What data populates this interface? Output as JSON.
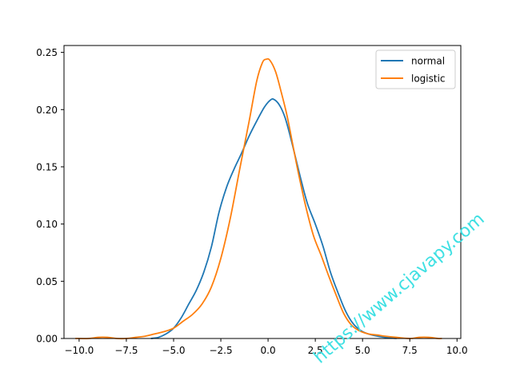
{
  "chart_data": {
    "type": "line",
    "title": "",
    "xlabel": "",
    "ylabel": "",
    "xlim": [
      -10.8,
      10.2
    ],
    "ylim": [
      0,
      0.256
    ],
    "x_ticks": [
      {
        "value": -10.0,
        "label": "−10.0"
      },
      {
        "value": -7.5,
        "label": "−7.5"
      },
      {
        "value": -5.0,
        "label": "−5.0"
      },
      {
        "value": -2.5,
        "label": "−2.5"
      },
      {
        "value": 0.0,
        "label": "0.0"
      },
      {
        "value": 2.5,
        "label": "2.5"
      },
      {
        "value": 5.0,
        "label": "5.0"
      },
      {
        "value": 7.5,
        "label": "7.5"
      },
      {
        "value": 10.0,
        "label": "10.0"
      }
    ],
    "y_ticks": [
      {
        "value": 0.0,
        "label": "0.00"
      },
      {
        "value": 0.05,
        "label": "0.05"
      },
      {
        "value": 0.1,
        "label": "0.10"
      },
      {
        "value": 0.15,
        "label": "0.15"
      },
      {
        "value": 0.2,
        "label": "0.20"
      },
      {
        "value": 0.25,
        "label": "0.25"
      }
    ],
    "grid": false,
    "legend_position": "top-right",
    "series": [
      {
        "name": "normal",
        "color": "#1f77b4",
        "points": [
          [
            -6.2,
            0.0
          ],
          [
            -5.8,
            0.001
          ],
          [
            -5.4,
            0.004
          ],
          [
            -5.0,
            0.009
          ],
          [
            -4.6,
            0.018
          ],
          [
            -4.2,
            0.03
          ],
          [
            -3.8,
            0.042
          ],
          [
            -3.4,
            0.058
          ],
          [
            -3.0,
            0.08
          ],
          [
            -2.6,
            0.11
          ],
          [
            -2.2,
            0.132
          ],
          [
            -1.8,
            0.148
          ],
          [
            -1.4,
            0.162
          ],
          [
            -1.0,
            0.177
          ],
          [
            -0.6,
            0.19
          ],
          [
            -0.2,
            0.202
          ],
          [
            0.1,
            0.208
          ],
          [
            0.3,
            0.209
          ],
          [
            0.6,
            0.204
          ],
          [
            0.9,
            0.193
          ],
          [
            1.2,
            0.175
          ],
          [
            1.5,
            0.155
          ],
          [
            1.8,
            0.135
          ],
          [
            2.1,
            0.117
          ],
          [
            2.5,
            0.1
          ],
          [
            2.9,
            0.081
          ],
          [
            3.3,
            0.058
          ],
          [
            3.7,
            0.04
          ],
          [
            4.1,
            0.024
          ],
          [
            4.5,
            0.013
          ],
          [
            4.9,
            0.007
          ],
          [
            5.3,
            0.004
          ],
          [
            5.8,
            0.002
          ],
          [
            6.2,
            0.001
          ],
          [
            6.8,
            0.0
          ]
        ]
      },
      {
        "name": "logistic",
        "color": "#ff7f0e",
        "points": [
          [
            -10.2,
            0.0
          ],
          [
            -9.5,
            0.0
          ],
          [
            -9.0,
            0.001
          ],
          [
            -8.5,
            0.001
          ],
          [
            -8.0,
            0.0
          ],
          [
            -7.5,
            0.0
          ],
          [
            -7.0,
            0.001
          ],
          [
            -6.5,
            0.002
          ],
          [
            -6.0,
            0.004
          ],
          [
            -5.5,
            0.006
          ],
          [
            -5.0,
            0.009
          ],
          [
            -4.5,
            0.015
          ],
          [
            -4.0,
            0.021
          ],
          [
            -3.5,
            0.03
          ],
          [
            -3.0,
            0.045
          ],
          [
            -2.5,
            0.07
          ],
          [
            -2.0,
            0.105
          ],
          [
            -1.5,
            0.148
          ],
          [
            -1.0,
            0.19
          ],
          [
            -0.6,
            0.225
          ],
          [
            -0.3,
            0.241
          ],
          [
            -0.1,
            0.244
          ],
          [
            0.1,
            0.243
          ],
          [
            0.4,
            0.233
          ],
          [
            0.7,
            0.215
          ],
          [
            1.0,
            0.195
          ],
          [
            1.3,
            0.17
          ],
          [
            1.6,
            0.145
          ],
          [
            2.0,
            0.115
          ],
          [
            2.4,
            0.09
          ],
          [
            2.8,
            0.073
          ],
          [
            3.2,
            0.055
          ],
          [
            3.6,
            0.038
          ],
          [
            4.0,
            0.022
          ],
          [
            4.4,
            0.012
          ],
          [
            4.8,
            0.007
          ],
          [
            5.3,
            0.004
          ],
          [
            5.8,
            0.003
          ],
          [
            6.2,
            0.002
          ],
          [
            6.8,
            0.001
          ],
          [
            7.5,
            0.0
          ],
          [
            8.0,
            0.001
          ],
          [
            8.5,
            0.001
          ],
          [
            9.0,
            0.0
          ],
          [
            9.2,
            0.0
          ]
        ]
      }
    ]
  },
  "watermark": {
    "text": "https://www.cjavapy.com",
    "color": "#3fe0e3"
  }
}
